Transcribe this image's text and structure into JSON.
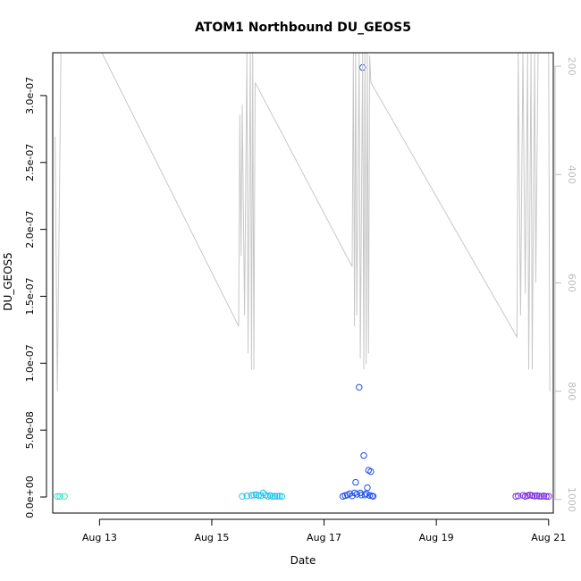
{
  "chart_data": {
    "type": "scatter",
    "title": "ATOM1 Northbound DU_GEOS5",
    "xlabel": "Date",
    "ylabel": "DU_GEOS5",
    "x_axis": {
      "type": "date",
      "range": [
        "2016-08-12 04:00",
        "2016-08-21 02:00"
      ],
      "ticks": [
        {
          "value": "2016-08-13",
          "label": "Aug 13"
        },
        {
          "value": "2016-08-15",
          "label": "Aug 15"
        },
        {
          "value": "2016-08-17",
          "label": "Aug 17"
        },
        {
          "value": "2016-08-19",
          "label": "Aug 19"
        },
        {
          "value": "2016-08-21",
          "label": "Aug 21"
        }
      ]
    },
    "y_axis": {
      "range": [
        -1.2e-08,
        3.32e-07
      ],
      "ticks": [
        {
          "value": 0,
          "label": "0.0e+00"
        },
        {
          "value": 5e-08,
          "label": "5.0e-08"
        },
        {
          "value": 1e-07,
          "label": "1.0e-07"
        },
        {
          "value": 1.5e-07,
          "label": "1.5e-07"
        },
        {
          "value": 2e-07,
          "label": "2.0e-07"
        },
        {
          "value": 2.5e-07,
          "label": "2.5e-07"
        },
        {
          "value": 3e-07,
          "label": "3.0e-07"
        }
      ]
    },
    "y2_axis": {
      "quantity": "pressure",
      "reversed": true,
      "range": [
        1025,
        175
      ],
      "color": "#bdbdbd",
      "ticks": [
        {
          "value": 200,
          "label": "200"
        },
        {
          "value": 400,
          "label": "400"
        },
        {
          "value": 600,
          "label": "600"
        },
        {
          "value": 800,
          "label": "800"
        },
        {
          "value": 1000,
          "label": "1000"
        }
      ]
    },
    "grid": false,
    "legend": "none",
    "series": [
      {
        "kind": "points",
        "color": "#2fe6c0",
        "points": [
          [
            "2016-08-12 06:00",
            5e-10
          ],
          [
            "2016-08-12 07:00",
            4e-10
          ],
          [
            "2016-08-12 09:00",
            5e-10
          ]
        ]
      },
      {
        "kind": "points",
        "color": "#22c4ee",
        "points": [
          [
            "2016-08-15 13:00",
            5e-10
          ],
          [
            "2016-08-15 15:00",
            8e-10
          ],
          [
            "2016-08-15 17:00",
            1.2e-09
          ],
          [
            "2016-08-15 18:00",
            1.5e-09
          ],
          [
            "2016-08-15 19:00",
            1.8e-09
          ],
          [
            "2016-08-15 20:00",
            1.2e-09
          ],
          [
            "2016-08-15 21:00",
            1e-09
          ],
          [
            "2016-08-15 22:00",
            3e-09
          ],
          [
            "2016-08-15 23:00",
            1.4e-09
          ],
          [
            "2016-08-16 00:00",
            5e-10
          ],
          [
            "2016-08-16 01:00",
            1.2e-09
          ],
          [
            "2016-08-16 02:00",
            4e-10
          ],
          [
            "2016-08-16 03:00",
            6e-10
          ],
          [
            "2016-08-16 04:00",
            5e-10
          ],
          [
            "2016-08-16 05:00",
            7e-10
          ],
          [
            "2016-08-16 06:00",
            4e-10
          ]
        ]
      },
      {
        "kind": "points",
        "color": "#1f4fe8",
        "points": [
          [
            "2016-08-17 08:00",
            5e-10
          ],
          [
            "2016-08-17 09:00",
            1e-09
          ],
          [
            "2016-08-17 10:00",
            1.5e-09
          ],
          [
            "2016-08-17 11:00",
            2.5e-09
          ],
          [
            "2016-08-17 12:00",
            8e-10
          ],
          [
            "2016-08-17 13:00",
            3e-09
          ],
          [
            "2016-08-17 13:30",
            1.1e-08
          ],
          [
            "2016-08-17 14:00",
            2e-09
          ],
          [
            "2016-08-17 15:00",
            8.2e-08
          ],
          [
            "2016-08-17 15:30",
            3e-09
          ],
          [
            "2016-08-17 16:00",
            1.5e-09
          ],
          [
            "2016-08-17 16:30",
            3.21e-07
          ],
          [
            "2016-08-17 17:00",
            3.1e-08
          ],
          [
            "2016-08-17 17:30",
            1.5e-09
          ],
          [
            "2016-08-17 18:00",
            2.5e-09
          ],
          [
            "2016-08-17 18:30",
            7e-09
          ],
          [
            "2016-08-17 19:00",
            2e-08
          ],
          [
            "2016-08-17 19:30",
            1.2e-09
          ],
          [
            "2016-08-17 20:00",
            1.9e-08
          ],
          [
            "2016-08-17 20:30",
            8e-10
          ],
          [
            "2016-08-17 21:00",
            5e-10
          ]
        ]
      },
      {
        "kind": "points",
        "color": "#7a2be0",
        "points": [
          [
            "2016-08-20 10:00",
            5e-10
          ],
          [
            "2016-08-20 11:00",
            8e-10
          ],
          [
            "2016-08-20 13:00",
            1.2e-09
          ],
          [
            "2016-08-20 14:00",
            5e-10
          ],
          [
            "2016-08-20 15:00",
            1e-09
          ],
          [
            "2016-08-20 16:00",
            1.5e-09
          ],
          [
            "2016-08-20 17:00",
            1.1e-09
          ],
          [
            "2016-08-20 18:00",
            7e-10
          ],
          [
            "2016-08-20 19:00",
            1e-09
          ],
          [
            "2016-08-20 20:00",
            6e-10
          ],
          [
            "2016-08-20 21:00",
            5e-10
          ],
          [
            "2016-08-20 22:00",
            8e-10
          ],
          [
            "2016-08-20 23:00",
            4e-10
          ],
          [
            "2016-08-21 00:00",
            5e-10
          ]
        ]
      },
      {
        "kind": "line",
        "axis": "y2",
        "color": "#c8c8c8",
        "points": [
          [
            "2016-08-12 05:00",
            330
          ],
          [
            "2016-08-12 06:00",
            800
          ],
          [
            "2016-08-12 07:30",
            175
          ],
          [
            "2016-08-13 01:00",
            175
          ],
          [
            "2016-08-15 11:30",
            680
          ],
          [
            "2016-08-15 12:00",
            290
          ],
          [
            "2016-08-15 12:30",
            550
          ],
          [
            "2016-08-15 13:00",
            270
          ],
          [
            "2016-08-15 14:00",
            660
          ],
          [
            "2016-08-15 15:00",
            175
          ],
          [
            "2016-08-15 15:30",
            730
          ],
          [
            "2016-08-15 16:30",
            175
          ],
          [
            "2016-08-15 17:00",
            760
          ],
          [
            "2016-08-15 17:30",
            175
          ],
          [
            "2016-08-15 18:00",
            760
          ],
          [
            "2016-08-15 18:30",
            230
          ],
          [
            "2016-08-17 12:00",
            570
          ],
          [
            "2016-08-17 12:30",
            175
          ],
          [
            "2016-08-17 13:00",
            680
          ],
          [
            "2016-08-17 13:30",
            175
          ],
          [
            "2016-08-17 14:00",
            660
          ],
          [
            "2016-08-17 15:00",
            175
          ],
          [
            "2016-08-17 15:30",
            740
          ],
          [
            "2016-08-17 16:30",
            175
          ],
          [
            "2016-08-17 17:00",
            760
          ],
          [
            "2016-08-17 17:30",
            175
          ],
          [
            "2016-08-17 18:00",
            750
          ],
          [
            "2016-08-17 18:30",
            175
          ],
          [
            "2016-08-17 19:00",
            730
          ],
          [
            "2016-08-17 19:30",
            180
          ],
          [
            "2016-08-17 20:00",
            230
          ],
          [
            "2016-08-20 10:30",
            700
          ],
          [
            "2016-08-20 11:00",
            175
          ],
          [
            "2016-08-20 12:00",
            660
          ],
          [
            "2016-08-20 13:00",
            175
          ],
          [
            "2016-08-20 14:00",
            620
          ],
          [
            "2016-08-20 15:00",
            175
          ],
          [
            "2016-08-20 15:30",
            760
          ],
          [
            "2016-08-20 16:30",
            175
          ],
          [
            "2016-08-20 17:00",
            760
          ],
          [
            "2016-08-20 18:00",
            175
          ],
          [
            "2016-08-20 18:30",
            600
          ],
          [
            "2016-08-20 19:30",
            175
          ],
          [
            "2016-08-21 00:00",
            175
          ],
          [
            "2016-08-21 00:30",
            800
          ]
        ]
      }
    ]
  }
}
